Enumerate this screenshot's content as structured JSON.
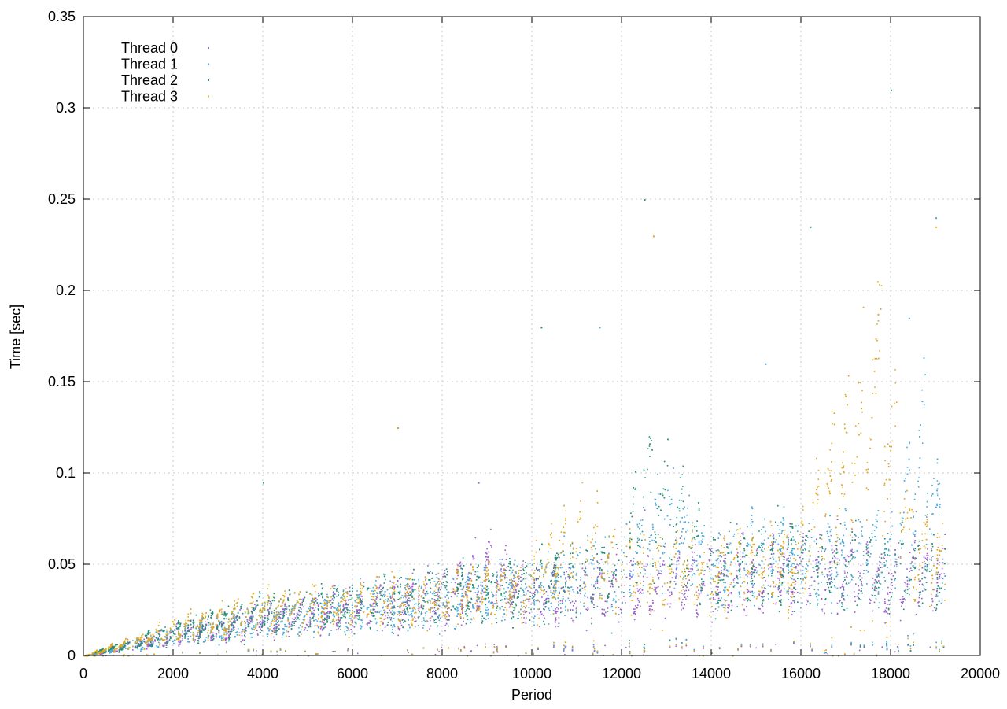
{
  "chart_data": {
    "type": "scatter",
    "title": "",
    "xlabel": "Period",
    "ylabel": "Time [sec]",
    "xlim": [
      0,
      20000
    ],
    "ylim": [
      0,
      0.35
    ],
    "x_ticks": [
      0,
      2000,
      4000,
      6000,
      8000,
      10000,
      12000,
      14000,
      16000,
      18000,
      20000
    ],
    "y_ticks": [
      0,
      0.05,
      0.1,
      0.15,
      0.2,
      0.25,
      0.3,
      0.35
    ],
    "x_tick_labels": [
      "0",
      "2000",
      "4000",
      "6000",
      "8000",
      "10000",
      "12000",
      "14000",
      "16000",
      "18000",
      "20000"
    ],
    "y_tick_labels": [
      "0",
      "0.05",
      "0.1",
      "0.15",
      "0.2",
      "0.25",
      "0.3",
      "0.35"
    ],
    "grid": true,
    "legend_position": "top-left",
    "x_data_range": [
      0,
      19200
    ],
    "series": [
      {
        "name": "Thread 0",
        "color": "#9b5fd1",
        "trend_x": [
          0,
          2000,
          4000,
          6000,
          8000,
          9000,
          10000,
          12000,
          14000,
          16000,
          18000,
          19200
        ],
        "trend_y": [
          0.0,
          0.012,
          0.022,
          0.028,
          0.034,
          0.05,
          0.035,
          0.04,
          0.045,
          0.05,
          0.045,
          0.05
        ],
        "outliers": [
          [
            8800,
            0.095
          ],
          [
            12500,
            0.08
          ],
          [
            16800,
            0.075
          ]
        ]
      },
      {
        "name": "Thread 1",
        "color": "#4aa9dc",
        "trend_x": [
          0,
          2000,
          4000,
          6000,
          8000,
          10000,
          12000,
          13000,
          14000,
          15000,
          16000,
          18000,
          18800,
          19200
        ],
        "trend_y": [
          0.0,
          0.012,
          0.022,
          0.028,
          0.034,
          0.04,
          0.05,
          0.08,
          0.05,
          0.06,
          0.055,
          0.06,
          0.12,
          0.05
        ],
        "outliers": [
          [
            11500,
            0.18
          ],
          [
            15200,
            0.16
          ],
          [
            18400,
            0.185
          ],
          [
            19000,
            0.24
          ]
        ]
      },
      {
        "name": "Thread 2",
        "color": "#22907a",
        "trend_x": [
          0,
          2000,
          4000,
          6000,
          8000,
          10000,
          12000,
          12500,
          14000,
          16000,
          18000,
          19200
        ],
        "trend_y": [
          0.0,
          0.014,
          0.025,
          0.03,
          0.035,
          0.04,
          0.05,
          0.1,
          0.05,
          0.055,
          0.05,
          0.05
        ],
        "outliers": [
          [
            4000,
            0.095
          ],
          [
            10200,
            0.18
          ],
          [
            12500,
            0.25
          ],
          [
            16200,
            0.235
          ],
          [
            18000,
            0.31
          ]
        ]
      },
      {
        "name": "Thread 3",
        "color": "#e0a81e",
        "trend_x": [
          0,
          2000,
          4000,
          6000,
          8000,
          10000,
          11000,
          12000,
          14000,
          16000,
          17700,
          18500,
          19200
        ],
        "trend_y": [
          0.0,
          0.015,
          0.026,
          0.03,
          0.034,
          0.04,
          0.07,
          0.05,
          0.05,
          0.055,
          0.16,
          0.06,
          0.055
        ],
        "outliers": [
          [
            7000,
            0.125
          ],
          [
            12700,
            0.23
          ],
          [
            17700,
            0.205
          ],
          [
            19000,
            0.235
          ]
        ]
      }
    ]
  }
}
